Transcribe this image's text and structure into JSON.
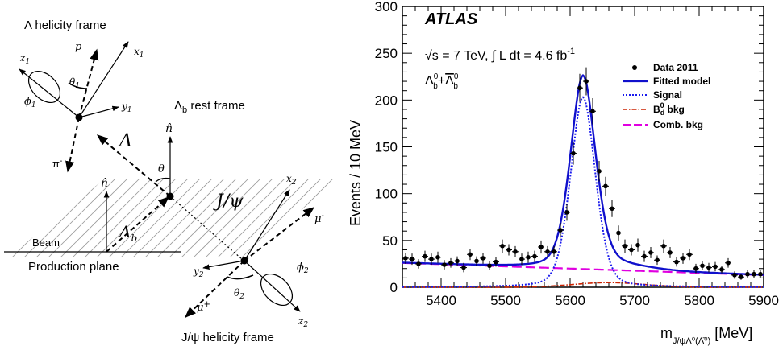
{
  "diagram": {
    "lambda_frame_title": "Λ helicity frame",
    "lambda_b_rest_frame": "Λ",
    "lambda_b_rest_frame_sub": "b",
    "lambda_b_rest_frame_tail": " rest frame",
    "jpsi_frame_title": "J/ψ helicity frame",
    "production_plane": "Production plane",
    "beam": "Beam",
    "p": "p",
    "pi_minus": "π",
    "pi_minus_sup": "-",
    "z1": "z",
    "z1_sub": "1",
    "x1": "x",
    "x1_sub": "1",
    "y1": "y",
    "y1_sub": "1",
    "theta1": "θ",
    "theta1_sub": "1",
    "phi1": "ϕ",
    "phi1_sub": "1",
    "n_hat_rest": "n̂",
    "n_hat_plane": "n̂",
    "theta": "θ",
    "Lambda": "Λ",
    "Lambda_b": "Λ",
    "Lambda_b_sub": "b",
    "jpsi": "J/ψ",
    "x2": "x",
    "x2_sub": "2",
    "y2": "y",
    "y2_sub": "2",
    "z2": "z",
    "z2_sub": "2",
    "mu_minus": "μ",
    "mu_minus_sup": "-",
    "mu_plus": "μ",
    "mu_plus_sup": "+",
    "theta2": "θ",
    "theta2_sub": "2",
    "phi2": "ϕ",
    "phi2_sub": "2"
  },
  "chart_data": {
    "type": "scatter",
    "experiment": "ATLAS",
    "energy_label": "√s = 7 TeV, ∫ L dt = 4.6 fb",
    "energy_sup": "-1",
    "sample_label": "Λ",
    "sample_sup_sub": "0",
    "sample_sub": "b",
    "sample_plus": "+",
    "sample_bar": "Λ",
    "xlabel": "m",
    "xlabel_sub": "J/ψΛ⁰(Λ̄⁰)",
    "xlabel_unit": "[MeV]",
    "ylabel": "Events / 10 MeV",
    "xlim": [
      5340,
      5900
    ],
    "ylim": [
      0,
      300
    ],
    "xticks": [
      5400,
      5500,
      5600,
      5700,
      5800,
      5900
    ],
    "yticks": [
      0,
      50,
      100,
      150,
      200,
      250,
      300
    ],
    "legend_position": "top-right",
    "colors": {
      "fit": "#1010cc",
      "signal": "#1a1aee",
      "bd": "#cc2200",
      "comb": "#e000e0"
    },
    "legend": [
      "Data 2011",
      "Fitted model",
      "Signal",
      "B",
      "Comb. bkg"
    ],
    "legend_bd_sup": "0",
    "legend_bd_sub": "d",
    "legend_bd_tail": " bkg",
    "data": {
      "x": [
        5345,
        5355,
        5365,
        5375,
        5385,
        5395,
        5405,
        5415,
        5425,
        5435,
        5445,
        5455,
        5465,
        5475,
        5485,
        5495,
        5505,
        5515,
        5525,
        5535,
        5545,
        5555,
        5565,
        5575,
        5585,
        5595,
        5605,
        5615,
        5625,
        5635,
        5645,
        5655,
        5665,
        5675,
        5685,
        5695,
        5705,
        5715,
        5725,
        5735,
        5745,
        5755,
        5765,
        5775,
        5785,
        5795,
        5805,
        5815,
        5825,
        5835,
        5845,
        5855,
        5865,
        5875,
        5885,
        5895
      ],
      "y": [
        31,
        30,
        25,
        33,
        30,
        32,
        24,
        26,
        28,
        21,
        35,
        28,
        31,
        23,
        27,
        44,
        40,
        38,
        30,
        32,
        33,
        43,
        38,
        38,
        61,
        80,
        143,
        213,
        220,
        188,
        124,
        108,
        84,
        58,
        44,
        40,
        45,
        33,
        37,
        29,
        44,
        37,
        27,
        31,
        35,
        20,
        23,
        21,
        22,
        19,
        26,
        13,
        11,
        14,
        14,
        14
      ],
      "yerr": [
        6,
        6,
        5,
        6,
        6,
        6,
        5,
        5,
        5,
        5,
        6,
        5,
        6,
        5,
        5,
        7,
        6,
        6,
        6,
        6,
        6,
        7,
        6,
        6,
        8,
        9,
        12,
        15,
        15,
        14,
        11,
        10,
        9,
        8,
        7,
        6,
        7,
        6,
        6,
        5,
        7,
        6,
        5,
        6,
        6,
        5,
        5,
        5,
        5,
        4,
        5,
        4,
        3,
        4,
        4,
        4
      ]
    },
    "fit": {
      "peak_mass": 5620,
      "signal_amplitude": 203,
      "signal_sigma": 20,
      "bd_amplitude": 5,
      "bd_center": 5660,
      "bd_sigma": 55,
      "comb_at_min": 26,
      "comb_at_max": 13
    }
  }
}
